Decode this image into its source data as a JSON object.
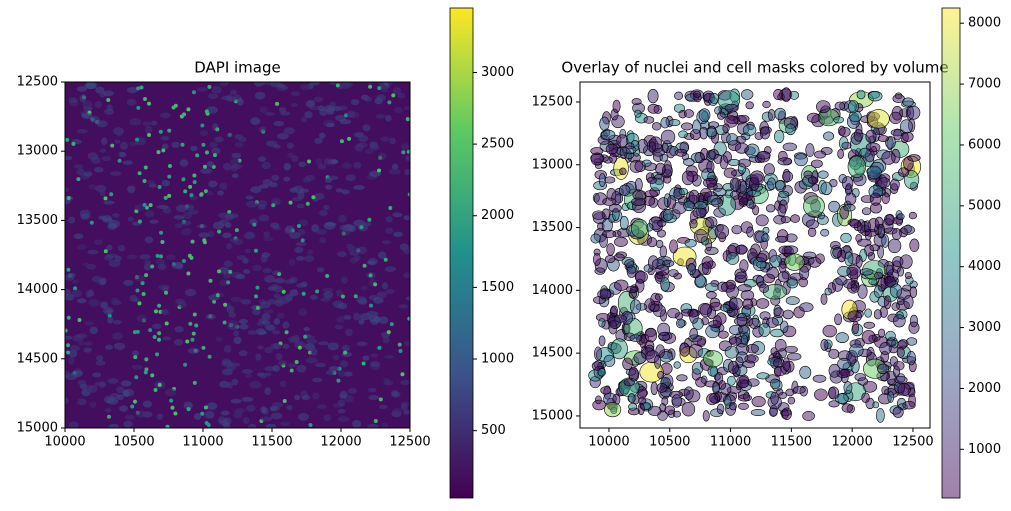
{
  "chart_data": [
    {
      "type": "image",
      "title": "DAPI image",
      "xlim": [
        10000,
        12500
      ],
      "xticks": [
        10000,
        10500,
        11000,
        11500,
        12000,
        12500
      ],
      "ylim": [
        15000,
        12500
      ],
      "yticks": [
        12500,
        13000,
        13500,
        14000,
        14500,
        15000
      ],
      "colorbar": {
        "colormap": "viridis",
        "alpha": 1,
        "clim": [
          30,
          3450
        ],
        "ticks": [
          500,
          1000,
          1500,
          2000,
          2500,
          3000
        ]
      }
    },
    {
      "type": "image",
      "title": "Overlay of nuclei and cell masks colored by volume",
      "xlim": [
        9762,
        12640
      ],
      "xticks": [
        10000,
        10500,
        11000,
        11500,
        12000,
        12500
      ],
      "ylim": [
        15096,
        12341
      ],
      "yticks": [
        12500,
        13000,
        13500,
        14000,
        14500,
        15000
      ],
      "colorbar": {
        "colormap": "viridis",
        "alpha": 0.5,
        "clim": [
          200,
          8250
        ],
        "ticks": [
          1000,
          2000,
          3000,
          4000,
          5000,
          6000,
          7000,
          8000
        ]
      }
    }
  ]
}
